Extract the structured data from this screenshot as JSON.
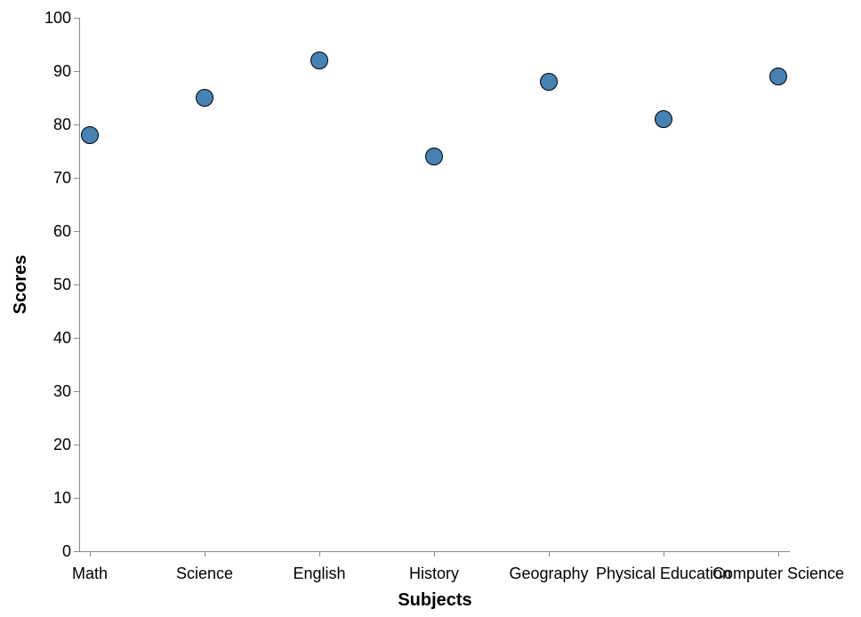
{
  "chart_data": {
    "type": "scatter",
    "title": "",
    "xlabel": "Subjects",
    "ylabel": "Scores",
    "categories": [
      "Math",
      "Science",
      "English",
      "History",
      "Geography",
      "Physical Education",
      "Computer Science"
    ],
    "values": [
      78,
      85,
      92,
      74,
      88,
      81,
      89
    ],
    "ylim": [
      0,
      100
    ],
    "yticks": [
      "0",
      "10",
      "20",
      "30",
      "40",
      "50",
      "60",
      "70",
      "80",
      "90",
      "100"
    ],
    "grid": false,
    "legend": "none",
    "colors": {
      "point_fill": "#4682b4",
      "point_stroke": "#000000",
      "axis": "#888888"
    }
  }
}
